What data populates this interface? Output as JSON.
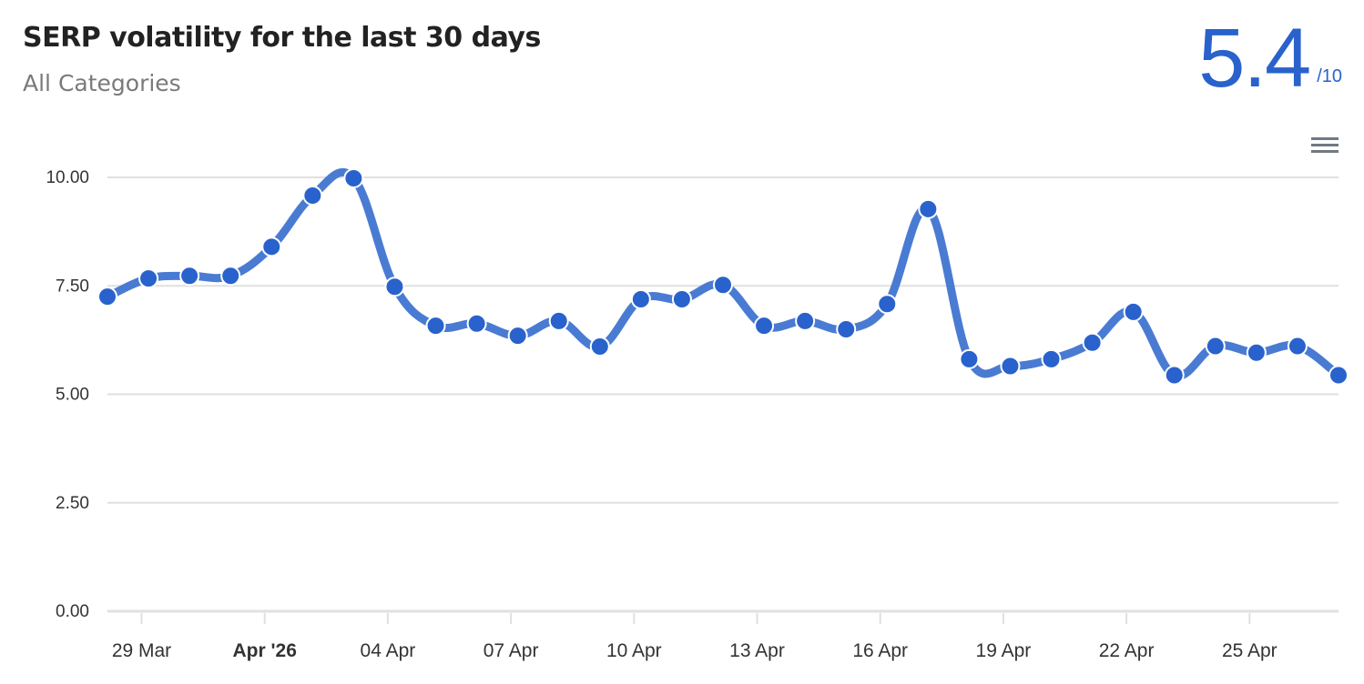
{
  "header": {
    "title": "SERP volatility for the last 30 days",
    "subtitle": "All Categories",
    "score_value": "5.4",
    "score_max": "/10",
    "menu_icon": "hamburger-menu-icon"
  },
  "colors": {
    "accent": "#2962cc",
    "line": "#4a7bd3",
    "point": "#2962cc",
    "point_border": "#ffffff",
    "grid": "#e0e0e0",
    "title": "#222222",
    "subtitle": "#7a7a7a"
  },
  "chart_data": {
    "type": "line",
    "title": "SERP volatility for the last 30 days",
    "subtitle": "All Categories",
    "xlabel": "",
    "ylabel": "",
    "ylim": [
      0,
      10
    ],
    "y_ticks": [
      "0.00",
      "2.50",
      "5.00",
      "7.50",
      "10.00"
    ],
    "x_tick_labels": [
      {
        "label": "29 Mar",
        "index": 1,
        "bold": false
      },
      {
        "label": "Apr '26",
        "index": 4,
        "bold": true
      },
      {
        "label": "04 Apr",
        "index": 7,
        "bold": false
      },
      {
        "label": "07 Apr",
        "index": 10,
        "bold": false
      },
      {
        "label": "10 Apr",
        "index": 13,
        "bold": false
      },
      {
        "label": "13 Apr",
        "index": 16,
        "bold": false
      },
      {
        "label": "16 Apr",
        "index": 19,
        "bold": false
      },
      {
        "label": "19 Apr",
        "index": 22,
        "bold": false
      },
      {
        "label": "22 Apr",
        "index": 25,
        "bold": false
      },
      {
        "label": "25 Apr",
        "index": 28,
        "bold": false
      }
    ],
    "grid": true,
    "legend": "none",
    "x": [
      "28 Mar",
      "29 Mar",
      "30 Mar",
      "31 Mar",
      "01 Apr",
      "02 Apr",
      "03 Apr",
      "04 Apr",
      "05 Apr",
      "06 Apr",
      "07 Apr",
      "08 Apr",
      "09 Apr",
      "10 Apr",
      "11 Apr",
      "12 Apr",
      "13 Apr",
      "14 Apr",
      "15 Apr",
      "16 Apr",
      "17 Apr",
      "18 Apr",
      "19 Apr",
      "20 Apr",
      "21 Apr",
      "22 Apr",
      "23 Apr",
      "24 Apr",
      "25 Apr",
      "26 Apr",
      "27 Apr"
    ],
    "series": [
      {
        "name": "SERP volatility",
        "values": [
          7.25,
          7.67,
          7.73,
          7.73,
          8.4,
          9.58,
          9.98,
          7.48,
          6.58,
          6.63,
          6.35,
          6.69,
          6.1,
          7.19,
          7.19,
          7.52,
          6.58,
          6.69,
          6.5,
          7.08,
          9.27,
          5.81,
          5.65,
          5.81,
          6.19,
          6.9,
          5.44,
          6.11,
          5.96,
          6.11,
          5.44
        ]
      }
    ]
  }
}
